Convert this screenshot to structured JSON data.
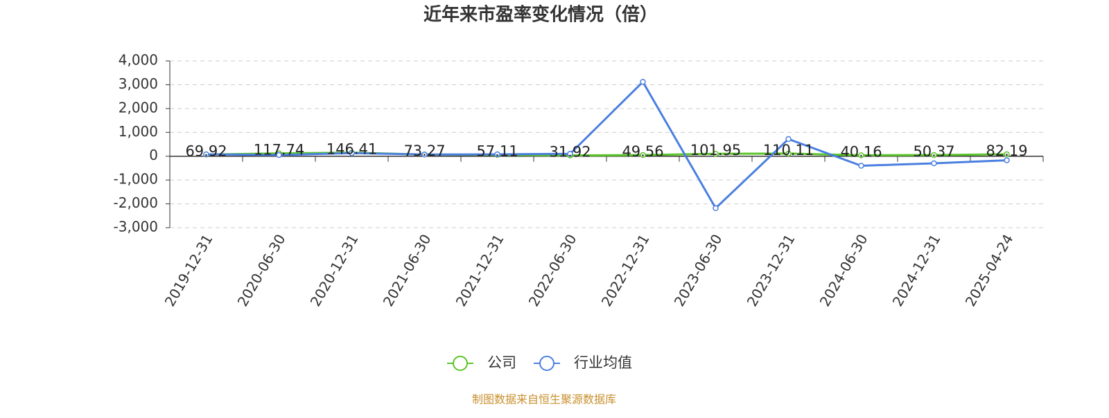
{
  "chart_data": {
    "type": "line",
    "title": "近年来市盈率变化情况（倍）",
    "categories": [
      "2019-12-31",
      "2020-06-30",
      "2020-12-31",
      "2021-06-30",
      "2021-12-31",
      "2022-06-30",
      "2022-12-31",
      "2023-06-30",
      "2023-12-31",
      "2024-06-30",
      "2024-12-31",
      "2025-04-24"
    ],
    "series": [
      {
        "name": "公司",
        "color": "#5bc42a",
        "values": [
          69.92,
          117.74,
          146.41,
          73.27,
          57.11,
          31.92,
          49.56,
          101.95,
          110.11,
          40.16,
          50.37,
          82.19
        ],
        "show_labels": true
      },
      {
        "name": "行业均值",
        "color": "#4a7fe0",
        "values": [
          80,
          50,
          130,
          70,
          80,
          100,
          3120,
          -2180,
          720,
          -400,
          -300,
          -170
        ],
        "show_labels": false
      }
    ],
    "ylim": [
      -3000,
      4000
    ],
    "yticks": [
      {
        "value": -3000,
        "label": "-3,000"
      },
      {
        "value": -2000,
        "label": "-2,000"
      },
      {
        "value": -1000,
        "label": "-1,000"
      },
      0,
      {
        "value": 1000,
        "label": "1,000"
      },
      {
        "value": 2000,
        "label": "2,000"
      },
      {
        "value": 3000,
        "label": "3,000"
      },
      {
        "value": 4000,
        "label": "4,000"
      }
    ],
    "grid": true,
    "legend": "bottom",
    "source": "制图数据来自恒生聚源数据库"
  }
}
